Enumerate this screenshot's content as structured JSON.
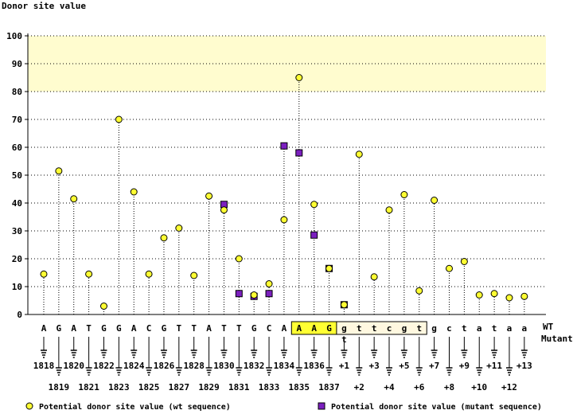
{
  "chart_data": {
    "type": "scatter",
    "ylabel": "Donor site value",
    "ylim": [
      0,
      100
    ],
    "yticks": [
      0,
      10,
      20,
      30,
      40,
      50,
      60,
      70,
      80,
      90,
      100
    ],
    "grid": true,
    "highlight_band": [
      80,
      100
    ],
    "row_labels": {
      "wt": "WT",
      "mutant": "Mutant"
    },
    "sequence": [
      {
        "base": "A",
        "pos": "1818",
        "wt": 14.5,
        "mut": null,
        "region": "exon"
      },
      {
        "base": "G",
        "pos": "1819",
        "wt": 51.5,
        "mut": null,
        "region": "exon"
      },
      {
        "base": "A",
        "pos": "1820",
        "wt": 41.5,
        "mut": null,
        "region": "exon"
      },
      {
        "base": "T",
        "pos": "1821",
        "wt": 14.5,
        "mut": null,
        "region": "exon"
      },
      {
        "base": "G",
        "pos": "1822",
        "wt": 3,
        "mut": null,
        "region": "exon"
      },
      {
        "base": "G",
        "pos": "1823",
        "wt": 70,
        "mut": null,
        "region": "exon"
      },
      {
        "base": "A",
        "pos": "1824",
        "wt": 44,
        "mut": null,
        "region": "exon"
      },
      {
        "base": "C",
        "pos": "1825",
        "wt": 14.5,
        "mut": null,
        "region": "exon"
      },
      {
        "base": "G",
        "pos": "1826",
        "wt": 27.5,
        "mut": null,
        "region": "exon"
      },
      {
        "base": "T",
        "pos": "1827",
        "wt": 31,
        "mut": null,
        "region": "exon"
      },
      {
        "base": "T",
        "pos": "1828",
        "wt": 14,
        "mut": null,
        "region": "exon"
      },
      {
        "base": "A",
        "pos": "1829",
        "wt": 42.5,
        "mut": null,
        "region": "exon"
      },
      {
        "base": "T",
        "pos": "1830",
        "wt": 37.5,
        "mut": 39.5,
        "region": "exon"
      },
      {
        "base": "T",
        "pos": "1831",
        "wt": 20,
        "mut": 7.5,
        "region": "exon"
      },
      {
        "base": "G",
        "pos": "1832",
        "wt": 7,
        "mut": 6.5,
        "region": "exon"
      },
      {
        "base": "C",
        "pos": "1833",
        "wt": 11,
        "mut": 7.5,
        "region": "exon"
      },
      {
        "base": "A",
        "pos": "1834",
        "wt": 34,
        "mut": 60.5,
        "region": "exon"
      },
      {
        "base": "A",
        "pos": "1835",
        "wt": 85,
        "mut": 58,
        "region": "box"
      },
      {
        "base": "A",
        "pos": "1836",
        "wt": 39.5,
        "mut": 28.5,
        "region": "box"
      },
      {
        "base": "G",
        "pos": "1837",
        "wt": 16.5,
        "mut": 16.5,
        "region": "box"
      },
      {
        "base": "g",
        "pos": "+1",
        "wt": 3.5,
        "mut": 3.5,
        "region": "intron",
        "mut_base": "t"
      },
      {
        "base": "t",
        "pos": "+2",
        "wt": 57.5,
        "mut": null,
        "region": "intron"
      },
      {
        "base": "t",
        "pos": "+3",
        "wt": 13.5,
        "mut": null,
        "region": "intron"
      },
      {
        "base": "c",
        "pos": "+4",
        "wt": 37.5,
        "mut": null,
        "region": "intron"
      },
      {
        "base": "g",
        "pos": "+5",
        "wt": 43,
        "mut": null,
        "region": "intron"
      },
      {
        "base": "t",
        "pos": "+6",
        "wt": 8.5,
        "mut": null,
        "region": "intron"
      },
      {
        "base": "g",
        "pos": "+7",
        "wt": 41,
        "mut": null,
        "region": "none"
      },
      {
        "base": "c",
        "pos": "+8",
        "wt": 16.5,
        "mut": null,
        "region": "none"
      },
      {
        "base": "t",
        "pos": "+9",
        "wt": 19,
        "mut": null,
        "region": "none"
      },
      {
        "base": "a",
        "pos": "+10",
        "wt": 7,
        "mut": null,
        "region": "none"
      },
      {
        "base": "t",
        "pos": "+11",
        "wt": 7.5,
        "mut": null,
        "region": "none"
      },
      {
        "base": "a",
        "pos": "+12",
        "wt": 6,
        "mut": null,
        "region": "none"
      },
      {
        "base": "a",
        "pos": "+13",
        "wt": 6.5,
        "mut": null,
        "region": "none"
      }
    ],
    "legend": [
      {
        "key": "wt",
        "label": "Potential donor site value (wt sequence)",
        "color": "#ffff33",
        "marker": "circle"
      },
      {
        "key": "mutant",
        "label": "Potential donor site value (mutant sequence)",
        "color": "#7b1fbf",
        "marker": "square"
      }
    ],
    "colors": {
      "band": "#fffccf",
      "wt": "#ffff33",
      "mut": "#7b1fbf",
      "mut_text": "#00008b",
      "box": "#ffff33"
    }
  }
}
